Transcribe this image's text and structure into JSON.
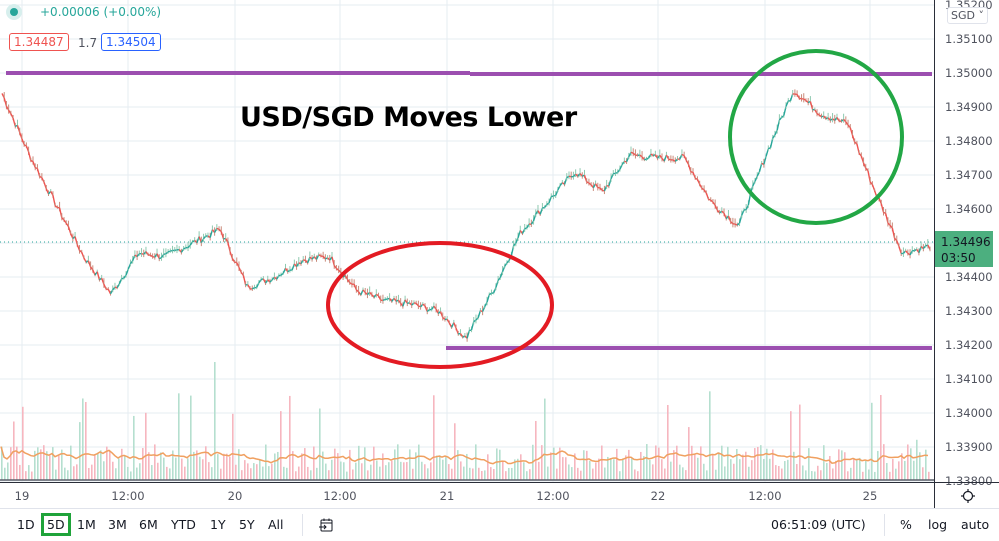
{
  "legend": {
    "change": "+0.00006 (+0.00%)",
    "bid": "1.34487",
    "spread": "1.7",
    "ask": "1.34504"
  },
  "annotation": {
    "title": "USD/SGD Moves Lower"
  },
  "price_axis": {
    "currency": "SGD ˅",
    "labels": [
      "1.35200",
      "1.35100",
      "1.35000",
      "1.34900",
      "1.34800",
      "1.34700",
      "1.34600",
      "1.34400",
      "1.34300",
      "1.34200",
      "1.34100",
      "1.34000",
      "1.33900",
      "1.33800"
    ],
    "last_price": "1.34496",
    "countdown": "03:50"
  },
  "time_axis": {
    "labels": [
      "19",
      "12:00",
      "20",
      "12:00",
      "21",
      "12:00",
      "22",
      "12:00",
      "25"
    ]
  },
  "bottom_bar": {
    "ranges": [
      "1D",
      "5D",
      "1M",
      "3M",
      "6M",
      "YTD",
      "1Y",
      "5Y",
      "All"
    ],
    "active_range": "5D",
    "clock": "06:51:09 (UTC)",
    "percent": "%",
    "log": "log",
    "auto": "auto"
  },
  "colors": {
    "up": "#26a69a",
    "down": "#ef5350",
    "resistance_line": "#9c4fb0",
    "support_line": "#9c4fb0",
    "red_ellipse": "#e31b23",
    "green_ellipse": "#22a745",
    "volume_ma": "#f0a060",
    "last_price_bg": "#4caf7f"
  },
  "chart_data": {
    "type": "line",
    "title": "USD/SGD Moves Lower",
    "symbol": "USD/SGD",
    "xlabel": "",
    "ylabel": "SGD",
    "ylim": [
      1.338,
      1.352
    ],
    "x_ticks": [
      "19",
      "12:00",
      "20",
      "12:00",
      "21",
      "12:00",
      "22",
      "12:00",
      "25"
    ],
    "y_ticks": [
      1.352,
      1.351,
      1.35,
      1.349,
      1.348,
      1.347,
      1.346,
      1.345,
      1.344,
      1.343,
      1.342,
      1.341,
      1.34,
      1.339,
      1.338
    ],
    "grid": true,
    "last_price": 1.34496,
    "price_series": {
      "name": "USD/SGD (approx. close, 5D intraday)",
      "x": [
        "19 00:00",
        "19 03:00",
        "19 06:00",
        "19 09:00",
        "19 12:00",
        "19 15:00",
        "19 18:00",
        "19 21:00",
        "20 00:00",
        "20 03:00",
        "20 06:00",
        "20 09:00",
        "20 12:00",
        "20 15:00",
        "20 18:00",
        "20 21:00",
        "21 00:00",
        "21 03:00",
        "21 06:00",
        "21 09:00",
        "21 12:00",
        "21 15:00",
        "21 18:00",
        "21 21:00",
        "22 00:00",
        "22 03:00",
        "22 06:00",
        "22 09:00",
        "22 12:00",
        "22 15:00",
        "22 18:00",
        "22 21:00",
        "25 00:00",
        "25 03:00",
        "25 06:00"
      ],
      "values": [
        1.3494,
        1.3476,
        1.3461,
        1.3446,
        1.3435,
        1.3447,
        1.3446,
        1.345,
        1.3454,
        1.3437,
        1.344,
        1.3445,
        1.3446,
        1.3436,
        1.3433,
        1.3432,
        1.343,
        1.3422,
        1.3436,
        1.3453,
        1.3462,
        1.3471,
        1.3465,
        1.3476,
        1.3475,
        1.3475,
        1.3462,
        1.3455,
        1.3476,
        1.3495,
        1.3488,
        1.3485,
        1.3465,
        1.3447,
        1.3449
      ]
    },
    "annotations": [
      {
        "type": "hline",
        "label": "resistance",
        "value": 1.35,
        "from": "19 00:00",
        "to": "25 06:00"
      },
      {
        "type": "hline",
        "label": "support",
        "value": 1.3418,
        "from": "21 00:00",
        "to": "25 06:00"
      },
      {
        "type": "ellipse",
        "color": "red",
        "around": "21 lows ~1.3418"
      },
      {
        "type": "ellipse",
        "color": "green",
        "around": "22 PM highs ~1.3498"
      }
    ],
    "volume": {
      "name": "Volume",
      "has_moving_average": true
    }
  }
}
